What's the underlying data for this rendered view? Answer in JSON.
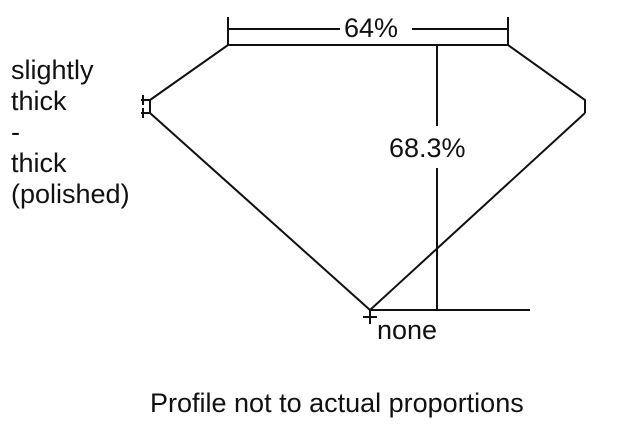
{
  "table_percent": "64%",
  "depth_percent": "68.3%",
  "girdle_label": [
    "slightly",
    "thick",
    "-",
    "thick",
    "(polished)"
  ],
  "culet_label": "none",
  "caption": "Profile not to actual proportions",
  "colors": {
    "line": "#111111",
    "background": "#ffffff"
  }
}
